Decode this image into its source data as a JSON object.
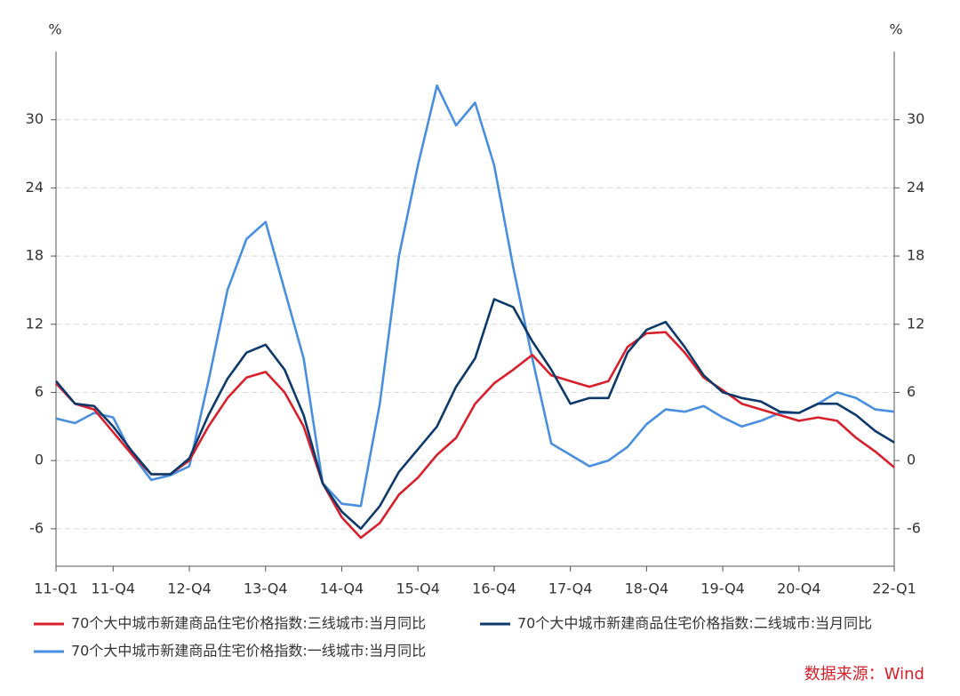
{
  "chart_data": {
    "type": "line",
    "ylabel": "%",
    "y2label": "%",
    "source": "数据来源：Wind",
    "categories": [
      "11-Q1",
      null,
      null,
      "11-Q4",
      null,
      null,
      null,
      "12-Q4",
      null,
      null,
      null,
      "13-Q4",
      null,
      null,
      null,
      "14-Q4",
      null,
      null,
      null,
      "15-Q4",
      null,
      null,
      null,
      "16-Q4",
      null,
      null,
      null,
      "17-Q4",
      null,
      null,
      null,
      "18-Q4",
      null,
      null,
      null,
      "19-Q4",
      null,
      null,
      null,
      "20-Q4",
      null,
      null,
      null,
      null,
      "22-Q1"
    ],
    "series": [
      {
        "name": "70个大中城市新建商品住宅价格指数:三线城市:当月同比",
        "color": "#d7202b",
        "values": [
          6.8,
          5.0,
          4.5,
          2.5,
          0.5,
          -1.2,
          -1.2,
          0,
          3,
          5.5,
          7.3,
          7.8,
          6,
          3,
          -2,
          -5,
          -6.8,
          -5.5,
          -3,
          -1.5,
          0.5,
          2,
          5,
          6.8,
          8,
          9.3,
          7.5,
          7,
          6.5,
          7,
          10,
          11.2,
          11.3,
          9.5,
          7.3,
          6.2,
          5,
          4.5,
          4,
          3.5,
          3.8,
          3.5,
          2,
          0.8,
          -0.6
        ]
      },
      {
        "name": "70个大中城市新建商品住宅价格指数:二线城市:当月同比",
        "color": "#0d3a6a",
        "values": [
          7,
          5,
          4.8,
          3,
          0.8,
          -1.2,
          -1.2,
          0.2,
          4,
          7.2,
          9.5,
          10.2,
          8,
          4,
          -2,
          -4.5,
          -6,
          -4,
          -1,
          1,
          3,
          6.5,
          9,
          14.2,
          13.5,
          10.5,
          8,
          5,
          5.5,
          5.5,
          9.5,
          11.5,
          12.2,
          10,
          7.5,
          6,
          5.5,
          5.2,
          4.3,
          4.2,
          5,
          5,
          4,
          2.6,
          1.6
        ]
      },
      {
        "name": "70个大中城市新建商品住宅价格指数:一线城市:当月同比",
        "color": "#4a8fdf",
        "values": [
          3.7,
          3.3,
          4.2,
          3.8,
          0.5,
          -1.7,
          -1.3,
          -0.5,
          7,
          15,
          19.5,
          21,
          15,
          9,
          -2,
          -3.8,
          -4,
          5,
          18,
          26,
          33,
          29.5,
          31.5,
          26,
          17,
          9,
          1.5,
          0.5,
          -0.5,
          0,
          1.2,
          3.2,
          4.5,
          4.3,
          4.8,
          3.8,
          3,
          3.5,
          4.2,
          4.2,
          5,
          6,
          5.5,
          4.5,
          4.3
        ]
      }
    ],
    "ylim": [
      -9.3,
      36
    ],
    "yticks": [
      -6,
      0,
      6,
      12,
      18,
      24,
      30
    ],
    "y2lim": [
      -9.3,
      36
    ],
    "y2ticks": [
      -6,
      0,
      6,
      12,
      18,
      24,
      30
    ],
    "grid": true
  }
}
